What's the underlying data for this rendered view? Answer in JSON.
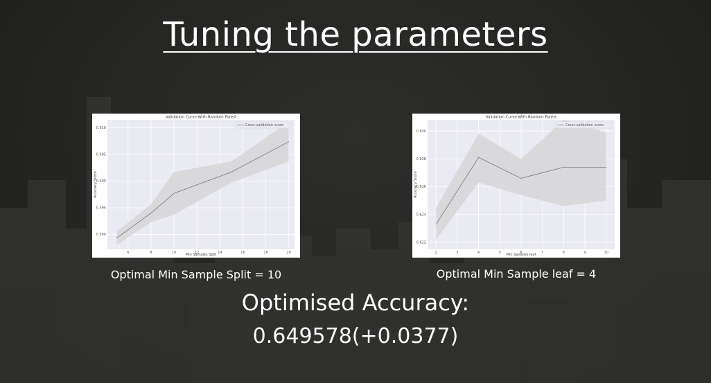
{
  "title": "Tuning the parameters",
  "captions": {
    "left": "Optimal Min Sample Split  = 10",
    "right": "Optimal Min Sample leaf = 4"
  },
  "accuracy": {
    "label": "Optimised Accuracy:",
    "value": "0.649578(+0.0377)"
  },
  "colors": {
    "plot_bg": "#eaeaf2",
    "band": "#d7d7d9",
    "line": "#777777",
    "slide_bg": "#262624"
  },
  "chart_data": [
    {
      "type": "line",
      "title": "Validation Curve With Random Forest",
      "xlabel": "Min Samples Split",
      "ylabel": "Accuracy Score",
      "legend": "Cross-validation score",
      "legend_position": "top-right",
      "grid": true,
      "xlim": [
        4.2,
        20.5
      ],
      "ylim": [
        0.5872,
        0.6115
      ],
      "xticks": [
        6,
        8,
        10,
        12,
        14,
        16,
        18,
        20
      ],
      "xtick_labels": [
        "6",
        "8",
        "10",
        "12",
        "14",
        "16",
        "18",
        "20"
      ],
      "yticks": [
        0.59,
        0.595,
        0.6,
        0.605,
        0.61
      ],
      "ytick_labels": [
        "0.590",
        "0.595",
        "0.600",
        "0.605",
        "0.610"
      ],
      "series": [
        {
          "x": [
            5,
            8,
            10,
            15,
            20
          ],
          "y": [
            0.5893,
            0.594,
            0.5977,
            0.6017,
            0.6074
          ],
          "upper": [
            0.5905,
            0.5957,
            0.6017,
            0.6037,
            0.6111
          ],
          "lower": [
            0.588,
            0.5923,
            0.5937,
            0.5997,
            0.6037
          ]
        }
      ]
    },
    {
      "type": "line",
      "title": "Validation Curve With Random Forest",
      "xlabel": "Min Samples leaf",
      "ylabel": "Accuracy Score",
      "legend": "Cross-validation score",
      "legend_position": "top-right",
      "grid": true,
      "xlim": [
        1.6,
        10.4
      ],
      "ylim": [
        0.6215,
        0.6308
      ],
      "xticks": [
        2,
        3,
        4,
        5,
        6,
        7,
        8,
        9,
        10
      ],
      "xtick_labels": [
        "2",
        "3",
        "4",
        "5",
        "6",
        "7",
        "8",
        "9",
        "10"
      ],
      "yticks": [
        0.622,
        0.624,
        0.626,
        0.628,
        0.63
      ],
      "ytick_labels": [
        "0.622",
        "0.624",
        "0.626",
        "0.628",
        "0.630"
      ],
      "series": [
        {
          "x": [
            2,
            4,
            6,
            8,
            10
          ],
          "y": [
            0.6233,
            0.6281,
            0.6266,
            0.6274,
            0.6274
          ],
          "upper": [
            0.6245,
            0.6298,
            0.628,
            0.6308,
            0.6299
          ],
          "lower": [
            0.6222,
            0.6263,
            0.6254,
            0.6246,
            0.625
          ]
        }
      ]
    }
  ]
}
